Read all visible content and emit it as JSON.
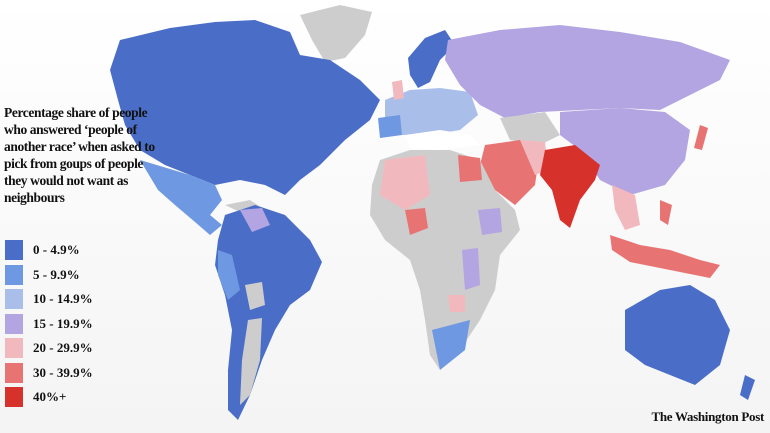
{
  "title": "Percentage share of people who answered ‘people of another race’ when asked to pick from goups of people they would not want as neighbours",
  "legend": [
    {
      "label": "0 - 4.9%",
      "color": "#4a6ec8"
    },
    {
      "label": "5 - 9.9%",
      "color": "#6f98e2"
    },
    {
      "label": "10 - 14.9%",
      "color": "#a9bfea"
    },
    {
      "label": "15 - 19.9%",
      "color": "#b3a4e2"
    },
    {
      "label": "20 - 29.9%",
      "color": "#f1b9bd"
    },
    {
      "label": "30 - 39.9%",
      "color": "#e77473"
    },
    {
      "label": "40%+",
      "color": "#d7312b"
    }
  ],
  "no_data_color": "#cdcdcd",
  "credit": "The Washington Post"
}
